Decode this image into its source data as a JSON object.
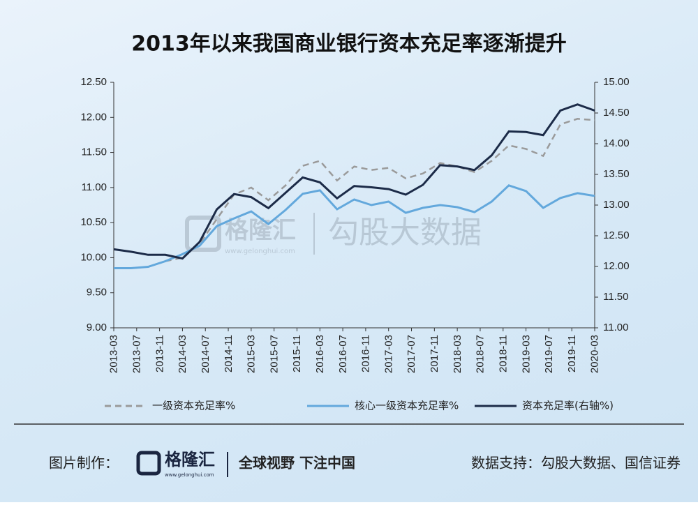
{
  "chart_data": {
    "type": "line",
    "title": "2013年以来我国商业银行资本充足率逐渐提升",
    "x": [
      "2013-03",
      "2013-06",
      "2013-09",
      "2013-12",
      "2014-03",
      "2014-06",
      "2014-09",
      "2014-12",
      "2015-03",
      "2015-06",
      "2015-09",
      "2015-12",
      "2016-03",
      "2016-06",
      "2016-09",
      "2016-12",
      "2017-03",
      "2017-06",
      "2017-09",
      "2017-12",
      "2018-03",
      "2018-06",
      "2018-09",
      "2018-12",
      "2019-03",
      "2019-06",
      "2019-09",
      "2019-12",
      "2020-03"
    ],
    "xlim": [
      "2013-03",
      "2020-03"
    ],
    "xticks": [
      "2013-03",
      "2013-07",
      "2013-11",
      "2014-03",
      "2014-07",
      "2014-11",
      "2015-03",
      "2015-07",
      "2015-11",
      "2016-03",
      "2016-07",
      "2016-11",
      "2017-03",
      "2017-07",
      "2017-11",
      "2018-03",
      "2018-07",
      "2018-11",
      "2019-03",
      "2019-07",
      "2019-11",
      "2020-03"
    ],
    "ylim": [
      9,
      12.5
    ],
    "yticks": [
      {
        "value": 9,
        "label": "9.00"
      },
      {
        "value": 9.5,
        "label": "9.50"
      },
      {
        "value": 10,
        "label": "10.00"
      },
      {
        "value": 10.5,
        "label": "10.50"
      },
      {
        "value": 11,
        "label": "11.00"
      },
      {
        "value": 11.5,
        "label": "11.50"
      },
      {
        "value": 12,
        "label": "12.00"
      },
      {
        "value": 12.5,
        "label": "12.50"
      }
    ],
    "y2lim": [
      11,
      15
    ],
    "y2ticks": [
      {
        "value": 11,
        "label": "11.00"
      },
      {
        "value": 11.5,
        "label": "11.50"
      },
      {
        "value": 12,
        "label": "12.00"
      },
      {
        "value": 12.5,
        "label": "12.50"
      },
      {
        "value": 13,
        "label": "13.00"
      },
      {
        "value": 13.5,
        "label": "13.50"
      },
      {
        "value": 14,
        "label": "14.00"
      },
      {
        "value": 14.5,
        "label": "14.50"
      },
      {
        "value": 15,
        "label": "15.00"
      }
    ],
    "series": [
      {
        "name": "一级资本充足率%",
        "color": "#9a9a9a",
        "dashed": true,
        "values": [
          9.85,
          9.85,
          9.87,
          9.95,
          10.0,
          10.2,
          10.55,
          10.9,
          11.0,
          10.82,
          11.03,
          11.31,
          11.38,
          11.1,
          11.3,
          11.25,
          11.28,
          11.13,
          11.2,
          11.35,
          11.3,
          11.22,
          11.38,
          11.6,
          11.55,
          11.45,
          11.9,
          11.98,
          11.96
        ]
      },
      {
        "name": "核心一级资本充足率%",
        "color": "#63a8dc",
        "values": [
          9.85,
          9.85,
          9.87,
          9.95,
          10.05,
          10.17,
          10.45,
          10.56,
          10.66,
          10.48,
          10.68,
          10.91,
          10.96,
          10.69,
          10.83,
          10.75,
          10.8,
          10.64,
          10.71,
          10.75,
          10.72,
          10.65,
          10.8,
          11.03,
          10.95,
          10.71,
          10.85,
          10.92,
          10.88
        ]
      },
      {
        "name": "资本充足率(右轴%)",
        "color": "#1c2b48",
        "axis": "y2",
        "values": [
          12.28,
          12.24,
          12.19,
          12.19,
          12.13,
          12.4,
          12.93,
          13.18,
          13.13,
          12.95,
          13.2,
          13.45,
          13.37,
          13.11,
          13.31,
          13.29,
          13.26,
          13.17,
          13.33,
          13.65,
          13.63,
          13.57,
          13.81,
          14.2,
          14.19,
          14.14,
          14.54,
          14.64,
          14.54
        ]
      }
    ]
  },
  "footer": {
    "maker_label": "图片制作：",
    "brand": "格隆汇",
    "url": "www.gelonghui.com",
    "slogan": "全球视野 下注中国",
    "source": "数据支持：勾股大数据、国信证券"
  },
  "watermark": {
    "brand": "格隆汇",
    "url": "www.gelonghui.com",
    "text": "勾股大数据"
  }
}
